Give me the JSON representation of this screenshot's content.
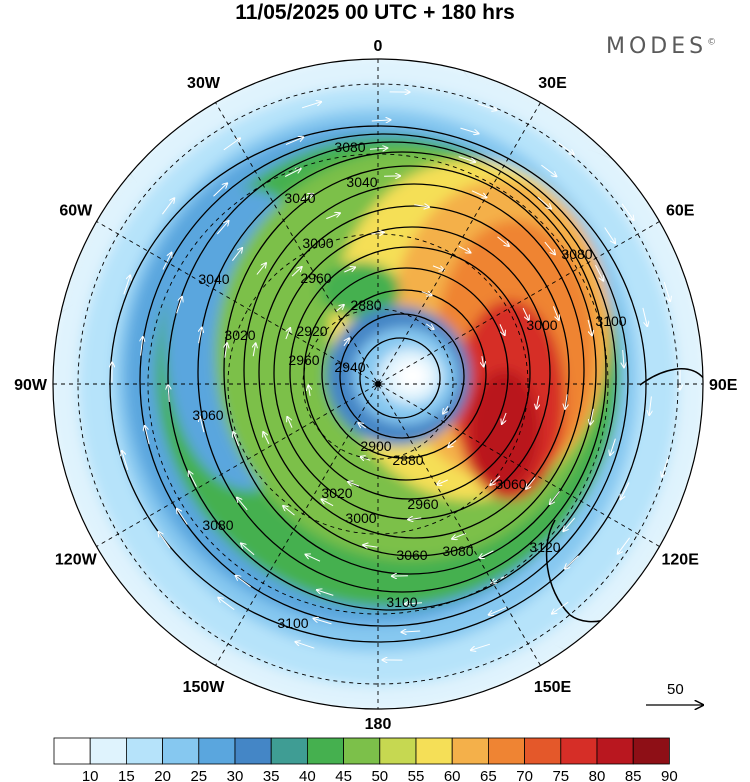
{
  "title": "11/05/2025  00 UTC  + 180 hrs",
  "brand": "MODES",
  "brand_mark": "©",
  "map": {
    "projection": "south polar stereographic",
    "longitude_labels": [
      {
        "text": "0",
        "lon": 0
      },
      {
        "text": "30E",
        "lon": 30
      },
      {
        "text": "60E",
        "lon": 60
      },
      {
        "text": "90E",
        "lon": 90
      },
      {
        "text": "120E",
        "lon": 120
      },
      {
        "text": "150E",
        "lon": 150
      },
      {
        "text": "180",
        "lon": 180
      },
      {
        "text": "150W",
        "lon": -150
      },
      {
        "text": "120W",
        "lon": -120
      },
      {
        "text": "90W",
        "lon": -90
      },
      {
        "text": "60W",
        "lon": -60
      },
      {
        "text": "30W",
        "lon": -30
      }
    ],
    "contour_labels": [
      "3080",
      "3040",
      "3040",
      "3000",
      "2960",
      "2880",
      "2940",
      "2900",
      "2880",
      "2960",
      "3000",
      "3020",
      "3060",
      "3080",
      "3100",
      "3100",
      "3080",
      "3060",
      "3040",
      "3020",
      "3000",
      "3080",
      "3100",
      "3120",
      "3060",
      "2920",
      "2960"
    ],
    "vector_reference": "50",
    "colors": {
      "land": "#f2f2f2",
      "coast": "#777777",
      "contour": "#000000",
      "vectors": "#ffffff"
    }
  },
  "colorbar": {
    "levels": [
      "10",
      "15",
      "20",
      "25",
      "30",
      "35",
      "40",
      "45",
      "50",
      "55",
      "60",
      "65",
      "70",
      "75",
      "80",
      "85",
      "90"
    ],
    "colors": [
      "#ffffff",
      "#dff3fd",
      "#b6e3fa",
      "#86c8f0",
      "#5aa6de",
      "#4486c6",
      "#3f9d94",
      "#45b04f",
      "#7cc04a",
      "#c6d851",
      "#f5df57",
      "#f4b04a",
      "#ef8433",
      "#e4582a",
      "#d62e27",
      "#b9171f",
      "#8e0f16"
    ]
  }
}
